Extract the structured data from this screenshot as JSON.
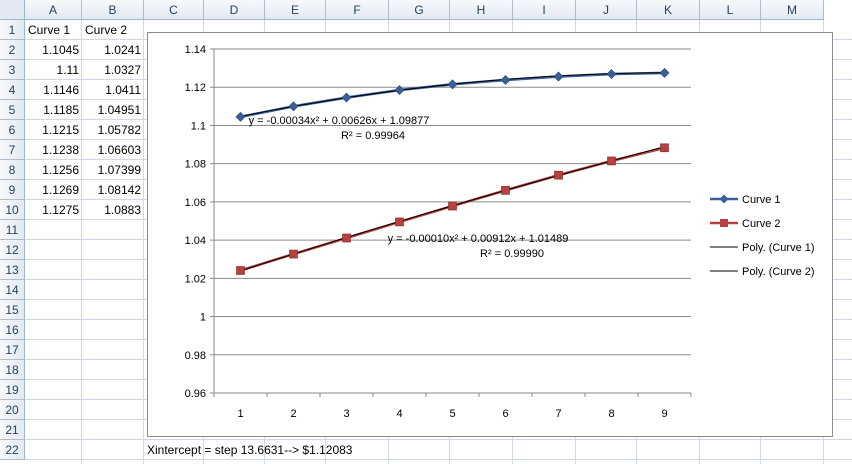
{
  "sheet": {
    "columns": [
      "A",
      "B",
      "C",
      "D",
      "E",
      "F",
      "G",
      "H",
      "I",
      "J",
      "K",
      "L",
      "M"
    ],
    "rows": [
      "1",
      "2",
      "3",
      "4",
      "5",
      "6",
      "7",
      "8",
      "9",
      "10",
      "11",
      "12",
      "13",
      "14",
      "15",
      "16",
      "17",
      "18",
      "19",
      "20",
      "21",
      "22"
    ],
    "header_a": "Curve 1",
    "header_b": "Curve 2",
    "col_a": [
      "1.1045",
      "1.11",
      "1.1146",
      "1.1185",
      "1.1215",
      "1.1238",
      "1.1256",
      "1.1269",
      "1.1275"
    ],
    "col_b": [
      "1.0241",
      "1.0327",
      "1.0411",
      "1.04951",
      "1.05782",
      "1.06603",
      "1.07399",
      "1.08142",
      "1.0883"
    ],
    "note": "Xintercept = step 13.6631--> $1.12083"
  },
  "chart_data": {
    "type": "line",
    "x": [
      1,
      2,
      3,
      4,
      5,
      6,
      7,
      8,
      9
    ],
    "series": [
      {
        "name": "Curve 1",
        "values": [
          1.1045,
          1.11,
          1.1146,
          1.1185,
          1.1215,
          1.1238,
          1.1256,
          1.1269,
          1.1275
        ],
        "color": "#3a5f9a",
        "marker": "diamond"
      },
      {
        "name": "Curve 2",
        "values": [
          1.0241,
          1.0327,
          1.0411,
          1.04951,
          1.05782,
          1.06603,
          1.07399,
          1.08142,
          1.0883
        ],
        "color": "#b5423f",
        "marker": "square"
      }
    ],
    "trendlines": [
      {
        "name": "Poly. (Curve 1)",
        "coef": [
          -0.00034,
          0.00626,
          1.09877
        ],
        "equation": "y = -0.00034x² + 0.00626x + 1.09877",
        "r2": "R² = 0.99964"
      },
      {
        "name": "Poly. (Curve 2)",
        "coef": [
          -0.0001,
          0.00912,
          1.01489
        ],
        "equation": "y = -0.00010x² + 0.00912x + 1.01489",
        "r2": "R² = 0.99990"
      }
    ],
    "yticks": [
      "1.14",
      "1.12",
      "1.1",
      "1.08",
      "1.06",
      "1.04",
      "1.02",
      "1",
      "0.98",
      "0.96"
    ],
    "xticks": [
      "1",
      "2",
      "3",
      "4",
      "5",
      "6",
      "7",
      "8",
      "9"
    ],
    "ylim": [
      0.96,
      1.14
    ],
    "grid": true,
    "legend_position": "right"
  }
}
